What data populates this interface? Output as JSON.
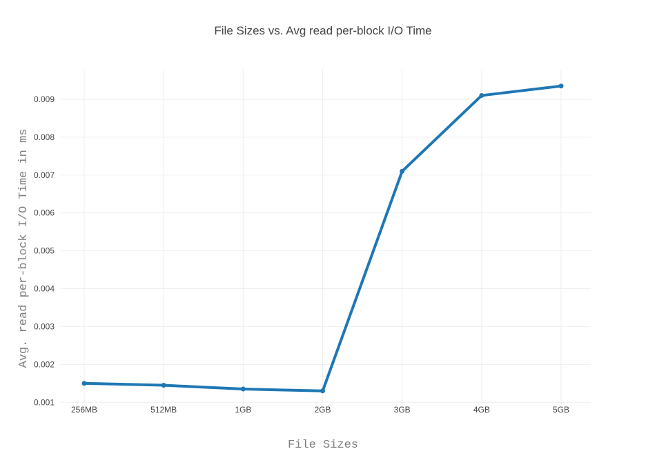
{
  "chart_data": {
    "type": "line",
    "title": "File Sizes vs. Avg read per-block I/O Time",
    "xlabel": "File Sizes",
    "ylabel": "Avg. read per-block I/O Time in ms",
    "categories": [
      "256MB",
      "512MB",
      "1GB",
      "2GB",
      "3GB",
      "4GB",
      "5GB"
    ],
    "series": [
      {
        "values": [
          0.0015,
          0.00145,
          0.00135,
          0.0013,
          0.0071,
          0.0091,
          0.00935
        ]
      }
    ],
    "yticks": [
      "0.001",
      "0.002",
      "0.003",
      "0.004",
      "0.005",
      "0.006",
      "0.007",
      "0.008",
      "0.009"
    ],
    "ylim": [
      0.00095,
      0.0098
    ],
    "grid": true,
    "line_color": "#1f77b4"
  }
}
